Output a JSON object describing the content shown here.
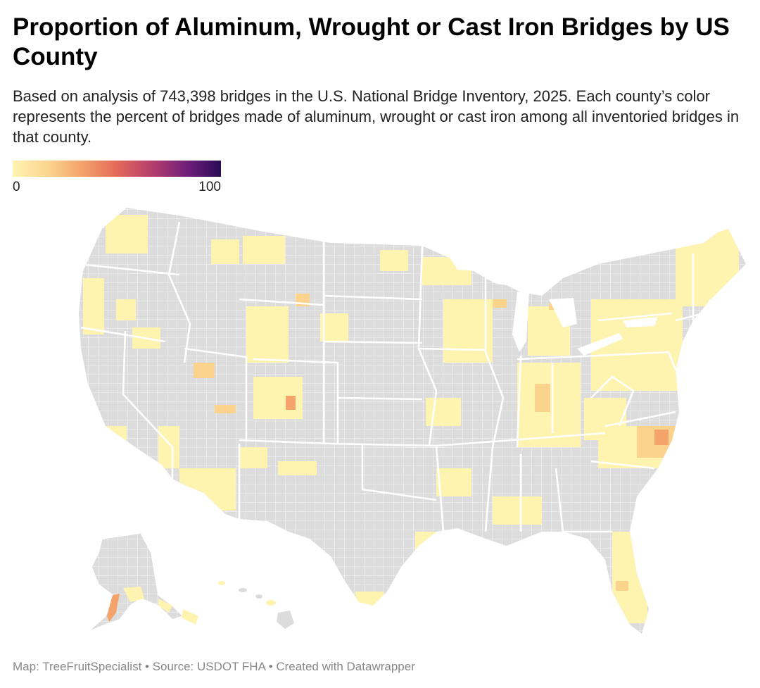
{
  "title": "Proportion of Aluminum, Wrought or Cast Iron Bridges by US County",
  "subtitle": "Based on analysis of 743,398 bridges in the U.S. National Bridge Inventory, 2025. Each county’s color represents the percent of bridges made of aluminum, wrought or cast iron among all inventoried bridges in that county.",
  "legend": {
    "min_label": "0",
    "max_label": "100",
    "min_value": 0,
    "max_value": 100
  },
  "footer": "Map: TreeFruitSpecialist • Source: USDOT FHA • Created with Datawrapper",
  "colors": {
    "no_data": "#dcdcdc",
    "low": "#fff3b0",
    "low_mid": "#fbd38d",
    "mid": "#f4a36a",
    "high": "#b53e6d",
    "max": "#2a0c55",
    "border": "#ffffff"
  }
}
